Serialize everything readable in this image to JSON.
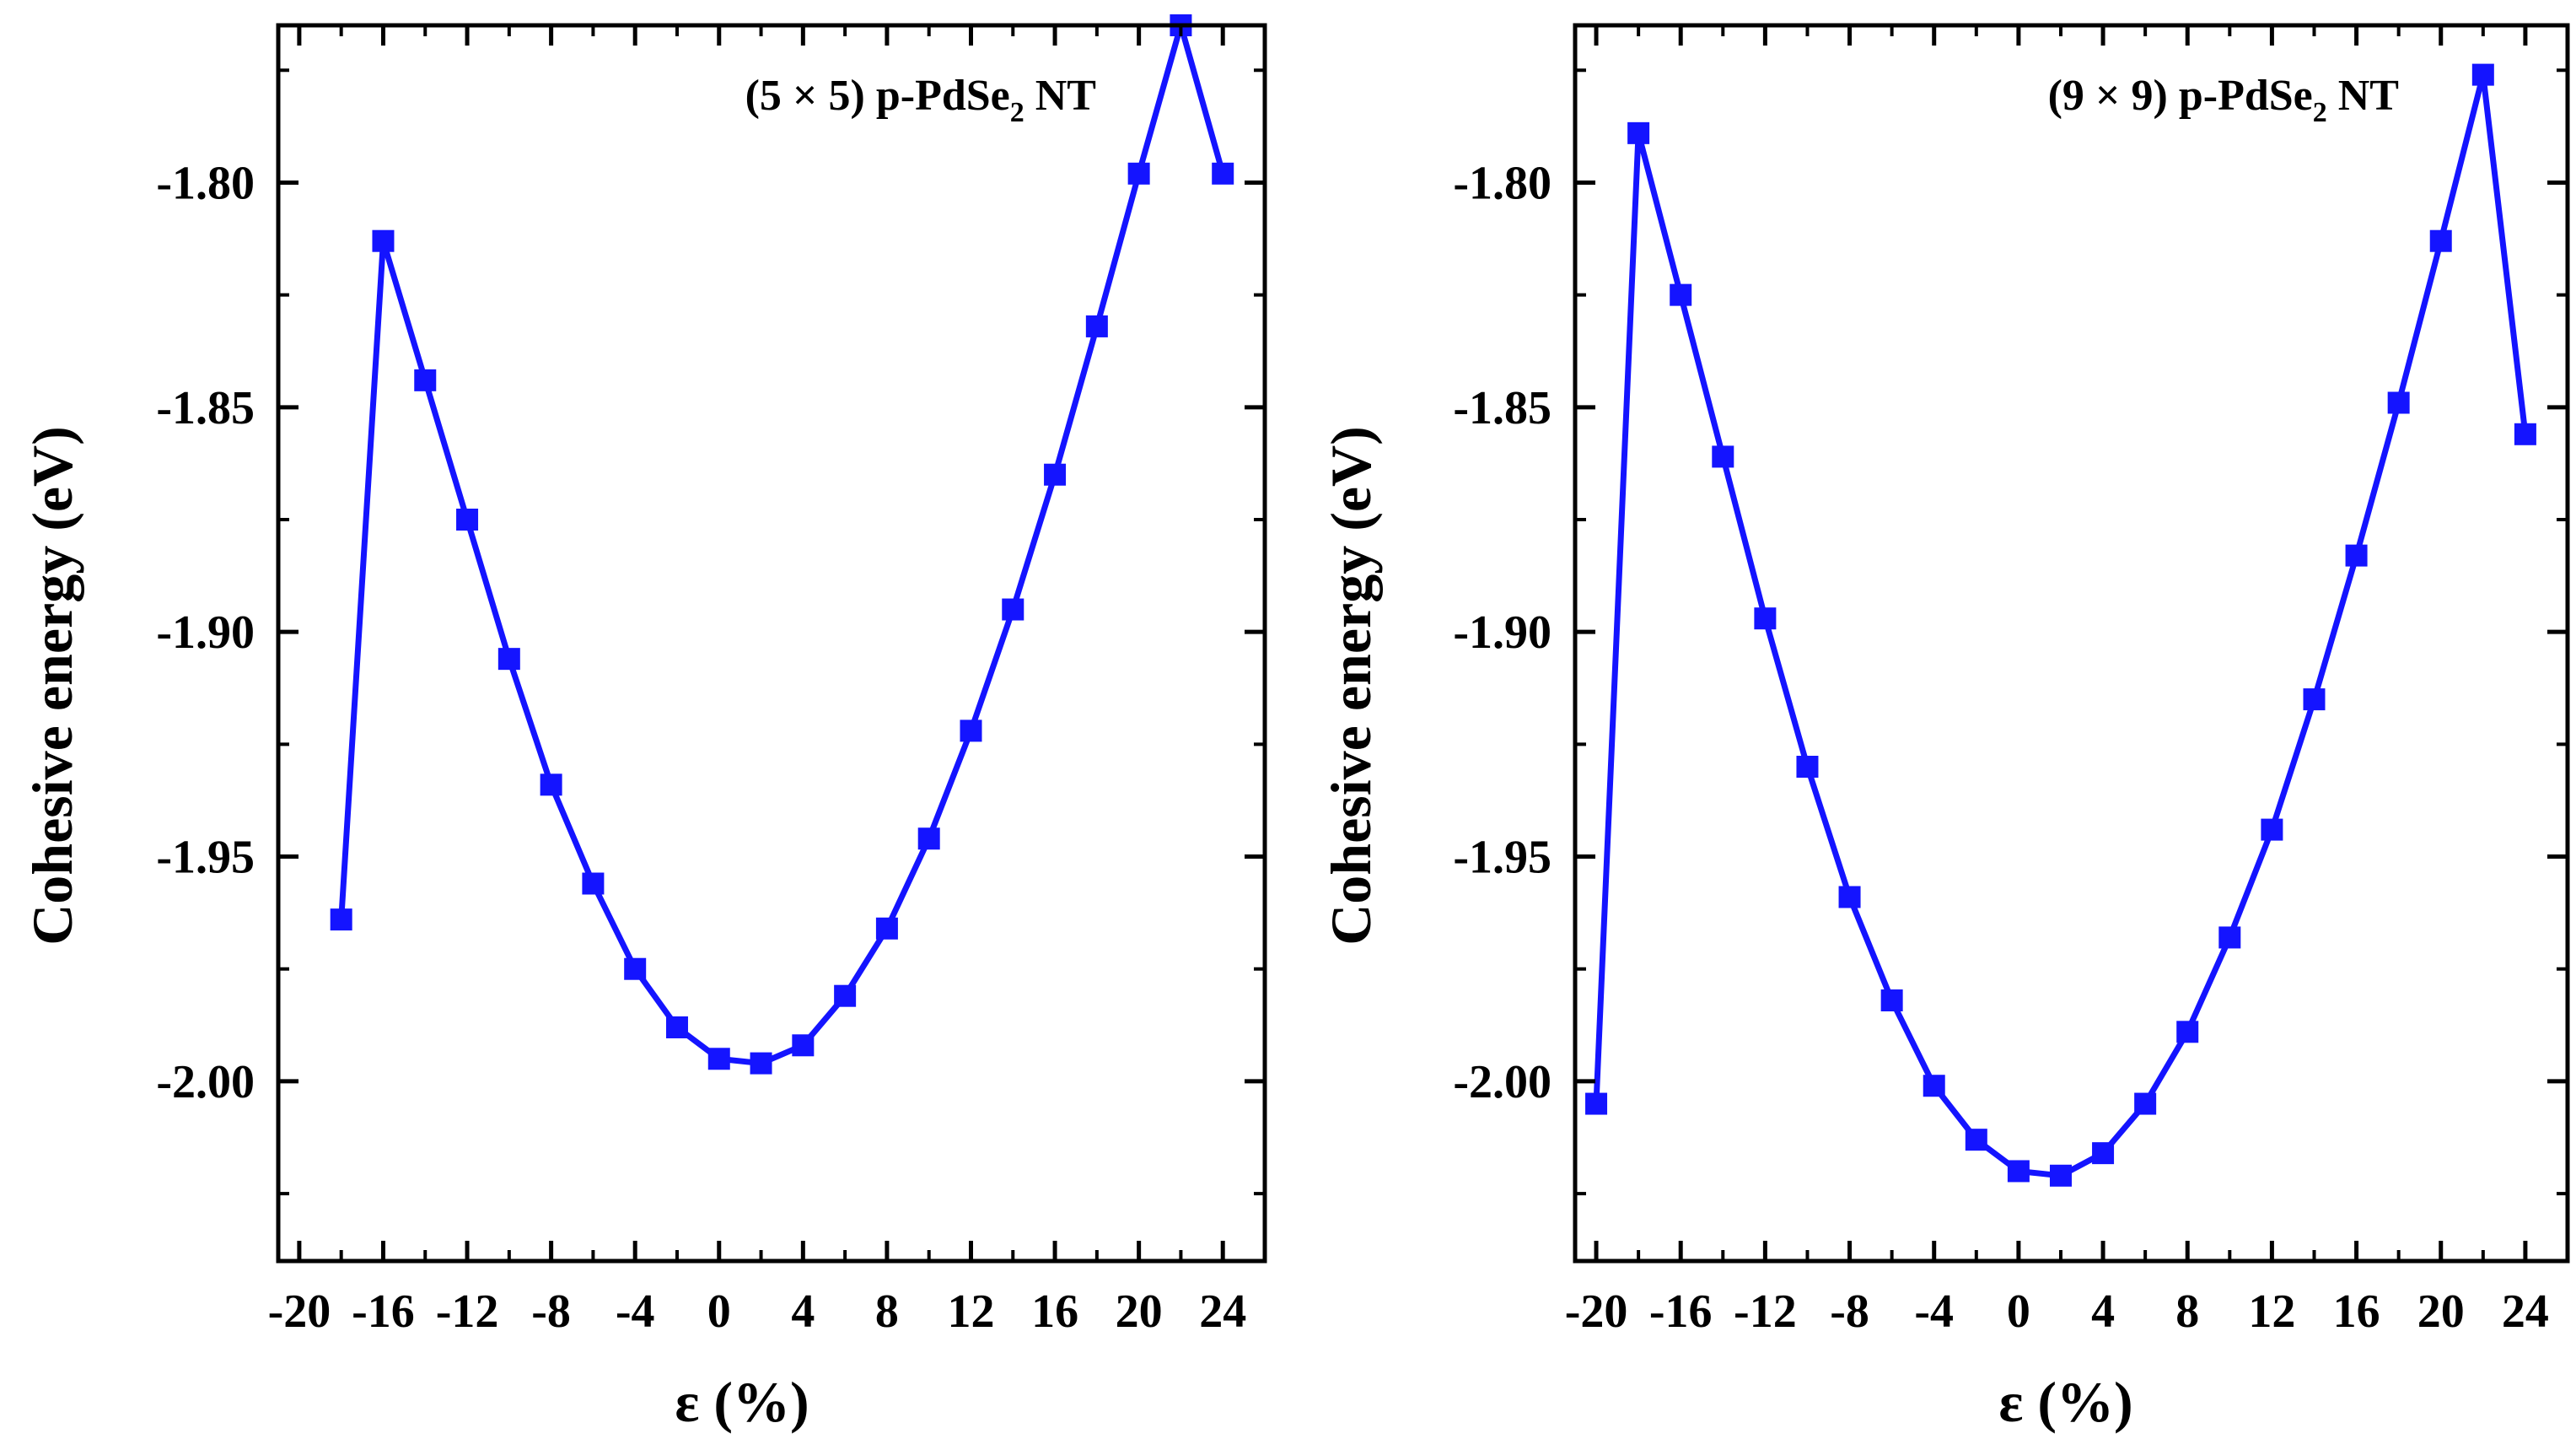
{
  "figure": {
    "colors": {
      "series": "#1414ff",
      "axis": "#000000"
    },
    "icons": {
      "marker": "square-marker-icon"
    }
  },
  "chart_data": [
    {
      "type": "line",
      "panel": "left",
      "annotation": {
        "prefix": "(5 × 5) p-PdSe",
        "subscript": "2",
        "suffix": " NT"
      },
      "xlabel": "ε (%)",
      "ylabel": "Cohesive energy (eV)",
      "xlim": [
        -21,
        26
      ],
      "ylim": [
        -2.04,
        -1.765
      ],
      "xticks": [
        -20,
        -16,
        -12,
        -8,
        -4,
        0,
        4,
        8,
        12,
        16,
        20,
        24
      ],
      "xtick_labels": [
        "-20",
        "-16",
        "-12",
        "-8",
        "-4",
        "0",
        "4",
        "8",
        "12",
        "16",
        "20",
        "24"
      ],
      "yticks": [
        -2.0,
        -1.95,
        -1.9,
        -1.85,
        -1.8
      ],
      "ytick_labels": [
        "-2.00",
        "-1.95",
        "-1.90",
        "-1.85",
        "-1.80"
      ],
      "grid": false,
      "series": [
        {
          "name": "(5 × 5) p-PdSe2 NT",
          "marker": "square",
          "x": [
            -18,
            -16,
            -14,
            -12,
            -10,
            -8,
            -6,
            -4,
            -2,
            0,
            2,
            4,
            6,
            8,
            10,
            12,
            14,
            16,
            18,
            20,
            22,
            24
          ],
          "y": [
            -1.964,
            -1.813,
            -1.844,
            -1.875,
            -1.906,
            -1.934,
            -1.956,
            -1.975,
            -1.988,
            -1.995,
            -1.996,
            -1.992,
            -1.981,
            -1.966,
            -1.946,
            -1.922,
            -1.895,
            -1.865,
            -1.832,
            -1.798,
            -1.765,
            -1.798
          ]
        }
      ]
    },
    {
      "type": "line",
      "panel": "right",
      "annotation": {
        "prefix": "(9 × 9) p-PdSe",
        "subscript": "2",
        "suffix": " NT"
      },
      "xlabel": "ε (%)",
      "ylabel": "Cohesive energy (eV)",
      "xlim": [
        -21,
        26
      ],
      "ylim": [
        -2.04,
        -1.765
      ],
      "xticks": [
        -20,
        -16,
        -12,
        -8,
        -4,
        0,
        4,
        8,
        12,
        16,
        20,
        24
      ],
      "xtick_labels": [
        "-20",
        "-16",
        "-12",
        "-8",
        "-4",
        "0",
        "4",
        "8",
        "12",
        "16",
        "20",
        "24"
      ],
      "yticks": [
        -2.0,
        -1.95,
        -1.9,
        -1.85,
        -1.8
      ],
      "ytick_labels": [
        "-2.00",
        "-1.95",
        "-1.90",
        "-1.85",
        "-1.80"
      ],
      "grid": false,
      "series": [
        {
          "name": "(9 × 9) p-PdSe2 NT",
          "marker": "square",
          "x": [
            -20,
            -18,
            -16,
            -14,
            -12,
            -10,
            -8,
            -6,
            -4,
            -2,
            0,
            2,
            4,
            6,
            8,
            10,
            12,
            14,
            16,
            18,
            20,
            22,
            24
          ],
          "y": [
            -2.005,
            -1.789,
            -1.825,
            -1.861,
            -1.897,
            -1.93,
            -1.959,
            -1.982,
            -2.001,
            -2.013,
            -2.02,
            -2.021,
            -2.016,
            -2.005,
            -1.989,
            -1.968,
            -1.944,
            -1.915,
            -1.883,
            -1.849,
            -1.813,
            -1.776,
            -1.856
          ]
        }
      ]
    }
  ]
}
